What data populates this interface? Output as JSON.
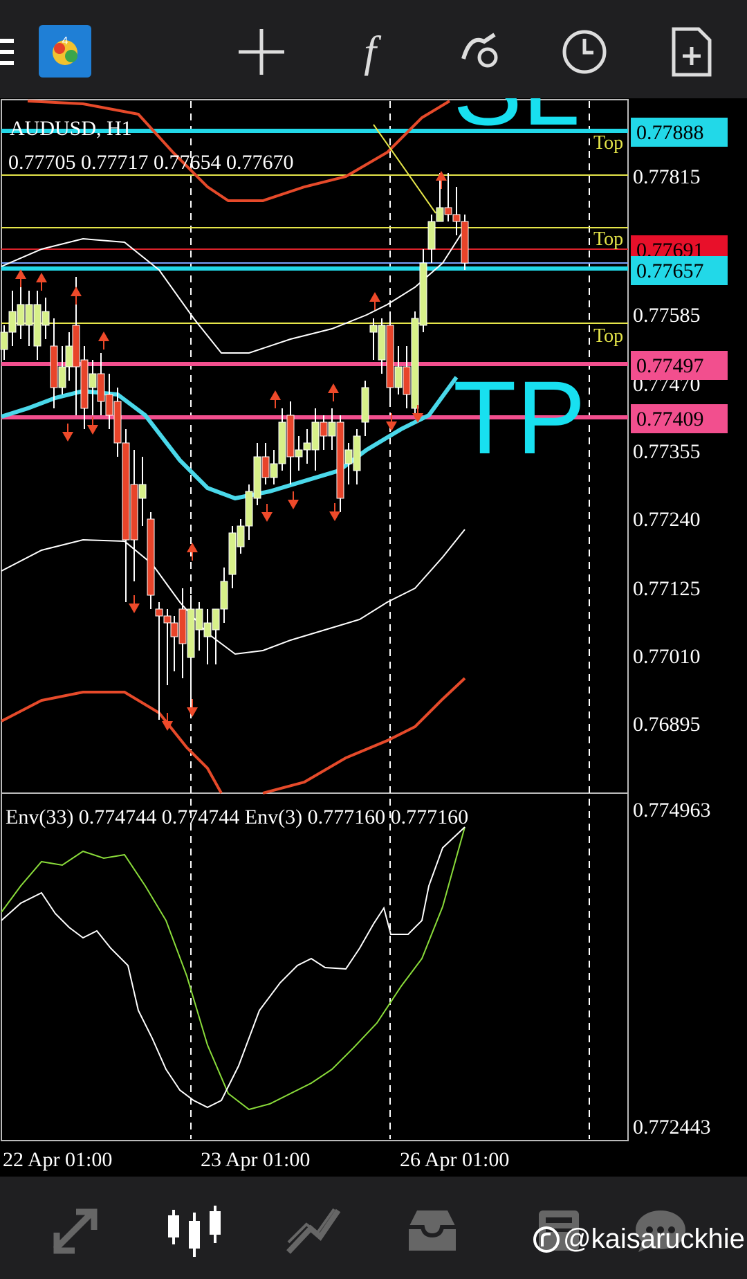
{
  "toolbar": {
    "menu_icon": "hamburger-icon",
    "app_icon": "metatrader-logo",
    "crosshair_icon": "crosshair-icon",
    "indicators_label": "f",
    "objects_icon": "objects-icon",
    "timeframe_icon": "clock-icon",
    "new_order_icon": "new-order-icon"
  },
  "chart": {
    "symbol": "AUDUSD, H1",
    "ohlc": "0.77705 0.77717 0.77654 0.77670",
    "sl_label": "SL",
    "tp_label": "TP",
    "top_label": "Top",
    "price_axis": [
      "0.77815",
      "0.77585",
      "0.77470",
      "0.77355",
      "0.77240",
      "0.77125",
      "0.77010",
      "0.76895"
    ],
    "price_tags": [
      {
        "text": "0.77888",
        "color": "#22d8e8"
      },
      {
        "text": "0.77691",
        "color": "#e8102a"
      },
      {
        "text": "0.77657",
        "color": "#22d8e8"
      },
      {
        "text": "0.77497",
        "color": "#f24f8e"
      },
      {
        "text": "0.77409",
        "color": "#f24f8e"
      }
    ],
    "time_axis": [
      "22 Apr 01:00",
      "23 Apr 01:00",
      "26 Apr 01:00"
    ]
  },
  "indicator": {
    "label": "Env(33) 0.774744 0.774744 Env(3) 0.777160 0.777160",
    "axis_top": "0.774963",
    "axis_bottom": "0.772443"
  },
  "bottom_nav": [
    {
      "icon": "quotes-icon"
    },
    {
      "icon": "chart-icon"
    },
    {
      "icon": "trade-icon"
    },
    {
      "icon": "history-icon"
    },
    {
      "icon": "news-icon"
    },
    {
      "icon": "messages-icon"
    }
  ],
  "watermark": "@kaisaruckhie"
}
